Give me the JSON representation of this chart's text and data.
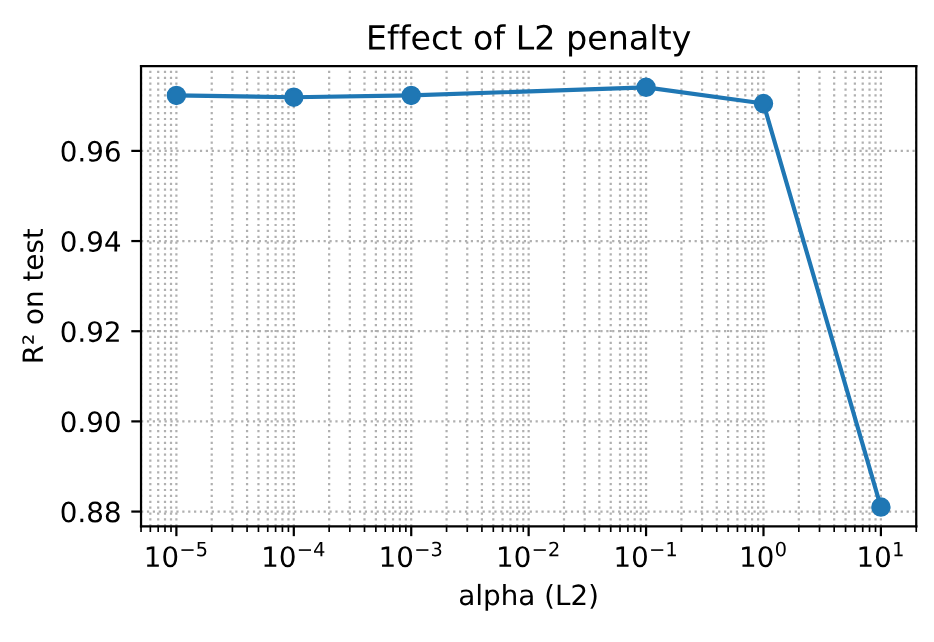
{
  "chart_data": {
    "type": "line",
    "title": "Effect of L2 penalty",
    "xlabel": "alpha (L2)",
    "ylabel": "R² on test",
    "x": [
      1e-05,
      0.0001,
      0.001,
      0.1,
      1,
      10
    ],
    "series": [
      {
        "color": "#1f77b4",
        "values": [
          0.9723,
          0.9719,
          0.9723,
          0.9741,
          0.9705,
          0.881
        ]
      }
    ],
    "log": "x",
    "marker": "circle",
    "line_style": "solid",
    "grid": true,
    "xlim": [
      5e-06,
      20
    ],
    "ylim": [
      0.8767,
      0.9788
    ],
    "xticks": [
      {
        "value": 1e-05,
        "label": "10$^{−5}$"
      },
      {
        "value": 0.0001,
        "label": "10$^{−4}$"
      },
      {
        "value": 0.001,
        "label": "10$^{−3}$"
      },
      {
        "value": 0.01,
        "label": "10$^{−2}$"
      },
      {
        "value": 0.1,
        "label": "10$^{−1}$"
      },
      {
        "value": 1,
        "label": "10$^{0}$"
      },
      {
        "value": 10,
        "label": "10$^{1}$"
      }
    ],
    "yticks": [
      {
        "value": 0.88,
        "label": "0.88"
      },
      {
        "value": 0.9,
        "label": "0.90"
      },
      {
        "value": 0.92,
        "label": "0.92"
      },
      {
        "value": 0.94,
        "label": "0.94"
      },
      {
        "value": 0.96,
        "label": "0.96"
      }
    ]
  }
}
